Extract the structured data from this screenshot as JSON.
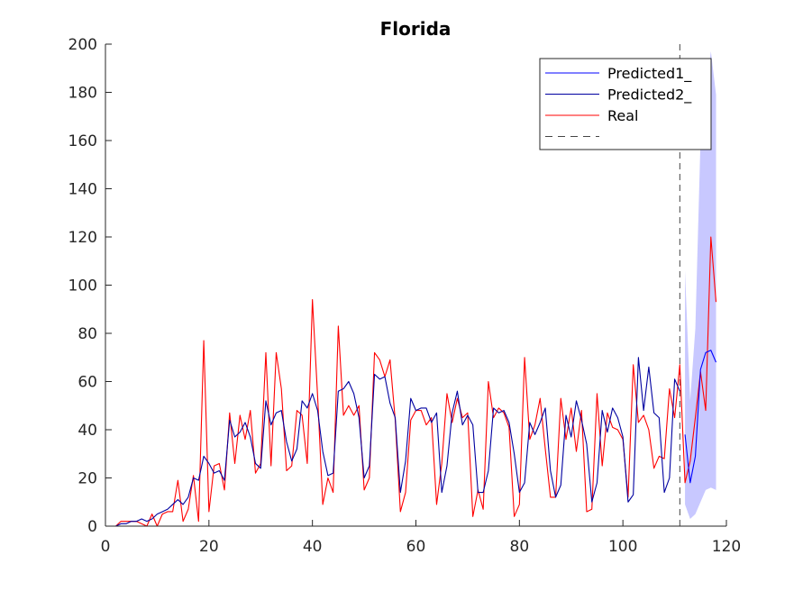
{
  "chart_data": {
    "type": "line",
    "title": "Florida",
    "xlabel": "",
    "ylabel": "",
    "xlim": [
      0,
      120
    ],
    "ylim": [
      0,
      200
    ],
    "xticks": [
      "0",
      "20",
      "40",
      "60",
      "80",
      "100",
      "120"
    ],
    "yticks": [
      "0",
      "20",
      "40",
      "60",
      "80",
      "100",
      "120",
      "140",
      "160",
      "180",
      "200"
    ],
    "grid": false,
    "legend_position": "top-right",
    "forecast_start_x": 111,
    "series": [
      {
        "name": "Predicted1_",
        "color": "#0000ff",
        "x": [
          112,
          113,
          114,
          115,
          116,
          117,
          118
        ],
        "y": [
          38,
          18,
          29,
          65,
          72,
          73,
          68
        ]
      },
      {
        "name": "Predicted2_",
        "color": "#0000a0",
        "x": [
          1,
          2,
          3,
          4,
          5,
          6,
          7,
          8,
          9,
          10,
          11,
          12,
          13,
          14,
          15,
          16,
          17,
          18,
          19,
          20,
          21,
          22,
          23,
          24,
          25,
          26,
          27,
          28,
          29,
          30,
          31,
          32,
          33,
          34,
          35,
          36,
          37,
          38,
          39,
          40,
          41,
          42,
          43,
          44,
          45,
          46,
          47,
          48,
          49,
          50,
          51,
          52,
          53,
          54,
          55,
          56,
          57,
          58,
          59,
          60,
          61,
          62,
          63,
          64,
          65,
          66,
          67,
          68,
          69,
          70,
          71,
          72,
          73,
          74,
          75,
          76,
          77,
          78,
          79,
          80,
          81,
          82,
          83,
          84,
          85,
          86,
          87,
          88,
          89,
          90,
          91,
          92,
          93,
          94,
          95,
          96,
          97,
          98,
          99,
          100,
          101,
          102,
          103,
          104,
          105,
          106,
          107,
          108,
          109,
          110,
          111
        ],
        "y": [
          0,
          0,
          1,
          1,
          2,
          2,
          3,
          2,
          3,
          5,
          6,
          7,
          9,
          11,
          9,
          12,
          20,
          19,
          29,
          26,
          22,
          23,
          19,
          44,
          37,
          39,
          43,
          37,
          26,
          24,
          52,
          42,
          47,
          48,
          35,
          27,
          32,
          52,
          49,
          55,
          48,
          31,
          21,
          22,
          56,
          57,
          60,
          55,
          45,
          20,
          25,
          63,
          61,
          62,
          51,
          45,
          14,
          27,
          53,
          48,
          49,
          49,
          43,
          47,
          14,
          25,
          47,
          56,
          42,
          46,
          42,
          14,
          14,
          23,
          49,
          47,
          48,
          43,
          30,
          14,
          18,
          43,
          38,
          43,
          49,
          23,
          12,
          17,
          46,
          37,
          52,
          44,
          34,
          10,
          18,
          48,
          39,
          49,
          45,
          37,
          10,
          13,
          70,
          48,
          66,
          47,
          45,
          14,
          20,
          61,
          56
        ]
      },
      {
        "name": "Real",
        "color": "#ff0000",
        "x": [
          1,
          2,
          3,
          4,
          5,
          6,
          7,
          8,
          9,
          10,
          11,
          12,
          13,
          14,
          15,
          16,
          17,
          18,
          19,
          20,
          21,
          22,
          23,
          24,
          25,
          26,
          27,
          28,
          29,
          30,
          31,
          32,
          33,
          34,
          35,
          36,
          37,
          38,
          39,
          40,
          41,
          42,
          43,
          44,
          45,
          46,
          47,
          48,
          49,
          50,
          51,
          52,
          53,
          54,
          55,
          56,
          57,
          58,
          59,
          60,
          61,
          62,
          63,
          64,
          65,
          66,
          67,
          68,
          69,
          70,
          71,
          72,
          73,
          74,
          75,
          76,
          77,
          78,
          79,
          80,
          81,
          82,
          83,
          84,
          85,
          86,
          87,
          88,
          89,
          90,
          91,
          92,
          93,
          94,
          95,
          96,
          97,
          98,
          99,
          100,
          101,
          102,
          103,
          104,
          105,
          106,
          107,
          108,
          109,
          110,
          111,
          112,
          113,
          114,
          115,
          116,
          117,
          118
        ],
        "y": [
          0,
          0,
          2,
          2,
          2,
          2,
          1,
          0,
          5,
          0,
          5,
          6,
          6,
          19,
          2,
          7,
          21,
          2,
          77,
          6,
          25,
          26,
          15,
          47,
          26,
          46,
          36,
          48,
          22,
          26,
          72,
          25,
          72,
          57,
          23,
          25,
          48,
          46,
          26,
          94,
          54,
          9,
          20,
          14,
          83,
          46,
          50,
          46,
          50,
          15,
          20,
          72,
          69,
          62,
          69,
          44,
          6,
          14,
          44,
          48,
          48,
          42,
          45,
          9,
          26,
          55,
          43,
          53,
          45,
          47,
          4,
          15,
          7,
          60,
          45,
          49,
          47,
          41,
          4,
          9,
          70,
          36,
          42,
          53,
          32,
          12,
          12,
          53,
          36,
          49,
          31,
          48,
          6,
          7,
          55,
          25,
          47,
          41,
          40,
          36,
          12,
          67,
          43,
          46,
          40,
          24,
          29,
          28,
          57,
          45,
          67,
          18,
          27,
          45,
          64,
          48,
          120,
          93
        ]
      },
      {
        "name": "",
        "color": "#444444",
        "style": "dashed",
        "x": [
          111,
          111
        ],
        "y": [
          0,
          200
        ]
      }
    ],
    "band": {
      "color": "#c8c8ff",
      "x": [
        112,
        113,
        114,
        115,
        116,
        117,
        118
      ],
      "lower": [
        9,
        3,
        5,
        10,
        15,
        16,
        15
      ],
      "upper": [
        106,
        52,
        82,
        160,
        180,
        197,
        179
      ]
    }
  }
}
